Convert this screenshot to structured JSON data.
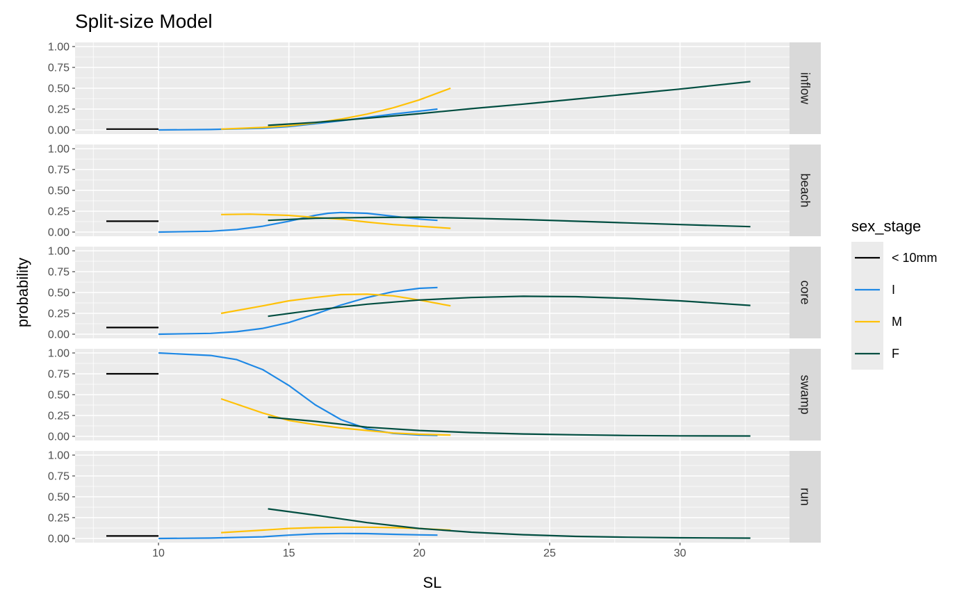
{
  "chart_data": {
    "type": "line",
    "title": "Split-size Model",
    "xlabel": "SL",
    "ylabel": "probability",
    "xlim": [
      6.8,
      34.2
    ],
    "ylim": [
      -0.05,
      1.05
    ],
    "x_ticks": [
      10,
      15,
      20,
      25,
      30
    ],
    "x_tick_labels": [
      "10",
      "15",
      "20",
      "25",
      "30"
    ],
    "y_ticks": [
      0,
      0.25,
      0.5,
      0.75,
      1
    ],
    "y_tick_labels": [
      "0.00",
      "0.25",
      "0.50",
      "0.75",
      "1.00"
    ],
    "grid": true,
    "facet_by": "row",
    "legend": {
      "title": "sex_stage",
      "position": "right",
      "entries": [
        {
          "label": "< 10mm",
          "color": "#000000"
        },
        {
          "label": "I",
          "color": "#1E88E5"
        },
        {
          "label": "M",
          "color": "#FFC107"
        },
        {
          "label": "F",
          "color": "#004D40"
        }
      ]
    },
    "panels": [
      {
        "label": "inflow",
        "series": [
          {
            "name": "< 10mm",
            "color": "#000000",
            "points": [
              [
                8,
                0.01
              ],
              [
                10,
                0.01
              ]
            ]
          },
          {
            "name": "I",
            "color": "#1E88E5",
            "points": [
              [
                10,
                0.0
              ],
              [
                12,
                0.005
              ],
              [
                14,
                0.02
              ],
              [
                15,
                0.04
              ],
              [
                16,
                0.075
              ],
              [
                17,
                0.11
              ],
              [
                18,
                0.15
              ],
              [
                19,
                0.19
              ],
              [
                20,
                0.225
              ],
              [
                20.7,
                0.25
              ]
            ]
          },
          {
            "name": "M",
            "color": "#FFC107",
            "points": [
              [
                12.4,
                0.01
              ],
              [
                14,
                0.03
              ],
              [
                15,
                0.05
              ],
              [
                16,
                0.085
              ],
              [
                17,
                0.13
              ],
              [
                18,
                0.19
              ],
              [
                19,
                0.265
              ],
              [
                20,
                0.36
              ],
              [
                21.2,
                0.5
              ]
            ]
          },
          {
            "name": "F",
            "color": "#004D40",
            "points": [
              [
                14.2,
                0.055
              ],
              [
                16,
                0.09
              ],
              [
                18,
                0.14
              ],
              [
                20,
                0.195
              ],
              [
                22,
                0.255
              ],
              [
                24,
                0.31
              ],
              [
                26,
                0.37
              ],
              [
                28,
                0.43
              ],
              [
                30,
                0.49
              ],
              [
                32.7,
                0.58
              ]
            ]
          }
        ]
      },
      {
        "label": "beach",
        "series": [
          {
            "name": "< 10mm",
            "color": "#000000",
            "points": [
              [
                8,
                0.13
              ],
              [
                10,
                0.13
              ]
            ]
          },
          {
            "name": "I",
            "color": "#1E88E5",
            "points": [
              [
                10,
                0.0
              ],
              [
                12,
                0.01
              ],
              [
                13,
                0.03
              ],
              [
                14,
                0.07
              ],
              [
                15,
                0.13
              ],
              [
                16,
                0.2
              ],
              [
                16.5,
                0.225
              ],
              [
                17,
                0.235
              ],
              [
                18,
                0.225
              ],
              [
                19,
                0.19
              ],
              [
                20,
                0.155
              ],
              [
                20.7,
                0.14
              ]
            ]
          },
          {
            "name": "M",
            "color": "#FFC107",
            "points": [
              [
                12.4,
                0.21
              ],
              [
                13.5,
                0.215
              ],
              [
                15,
                0.2
              ],
              [
                16,
                0.175
              ],
              [
                17,
                0.155
              ],
              [
                18,
                0.12
              ],
              [
                19,
                0.09
              ],
              [
                20,
                0.07
              ],
              [
                21.2,
                0.045
              ]
            ]
          },
          {
            "name": "F",
            "color": "#004D40",
            "points": [
              [
                14.2,
                0.14
              ],
              [
                16,
                0.165
              ],
              [
                18,
                0.175
              ],
              [
                20,
                0.178
              ],
              [
                22,
                0.165
              ],
              [
                24,
                0.15
              ],
              [
                26,
                0.13
              ],
              [
                28,
                0.11
              ],
              [
                30,
                0.09
              ],
              [
                32.7,
                0.065
              ]
            ]
          }
        ]
      },
      {
        "label": "core",
        "series": [
          {
            "name": "< 10mm",
            "color": "#000000",
            "points": [
              [
                8,
                0.08
              ],
              [
                10,
                0.08
              ]
            ]
          },
          {
            "name": "I",
            "color": "#1E88E5",
            "points": [
              [
                10,
                0.0
              ],
              [
                12,
                0.01
              ],
              [
                13,
                0.03
              ],
              [
                14,
                0.07
              ],
              [
                15,
                0.14
              ],
              [
                16,
                0.24
              ],
              [
                17,
                0.35
              ],
              [
                18,
                0.44
              ],
              [
                19,
                0.51
              ],
              [
                20,
                0.55
              ],
              [
                20.7,
                0.56
              ]
            ]
          },
          {
            "name": "M",
            "color": "#FFC107",
            "points": [
              [
                12.4,
                0.25
              ],
              [
                14,
                0.34
              ],
              [
                15,
                0.4
              ],
              [
                16,
                0.44
              ],
              [
                17,
                0.475
              ],
              [
                18,
                0.48
              ],
              [
                19,
                0.46
              ],
              [
                20,
                0.41
              ],
              [
                21.2,
                0.34
              ]
            ]
          },
          {
            "name": "F",
            "color": "#004D40",
            "points": [
              [
                14.2,
                0.215
              ],
              [
                16,
                0.29
              ],
              [
                18,
                0.36
              ],
              [
                20,
                0.41
              ],
              [
                22,
                0.44
              ],
              [
                24,
                0.455
              ],
              [
                26,
                0.45
              ],
              [
                28,
                0.43
              ],
              [
                30,
                0.4
              ],
              [
                32.7,
                0.345
              ]
            ]
          }
        ]
      },
      {
        "label": "swamp",
        "series": [
          {
            "name": "< 10mm",
            "color": "#000000",
            "points": [
              [
                8,
                0.75
              ],
              [
                10,
                0.75
              ]
            ]
          },
          {
            "name": "I",
            "color": "#1E88E5",
            "points": [
              [
                10,
                1.0
              ],
              [
                12,
                0.97
              ],
              [
                13,
                0.92
              ],
              [
                14,
                0.8
              ],
              [
                15,
                0.61
              ],
              [
                16,
                0.38
              ],
              [
                17,
                0.2
              ],
              [
                18,
                0.09
              ],
              [
                19,
                0.035
              ],
              [
                20,
                0.015
              ],
              [
                20.7,
                0.01
              ]
            ]
          },
          {
            "name": "M",
            "color": "#FFC107",
            "points": [
              [
                12.4,
                0.45
              ],
              [
                14,
                0.28
              ],
              [
                15,
                0.19
              ],
              [
                16,
                0.14
              ],
              [
                17,
                0.1
              ],
              [
                18,
                0.07
              ],
              [
                19,
                0.04
              ],
              [
                20,
                0.025
              ],
              [
                21.2,
                0.015
              ]
            ]
          },
          {
            "name": "F",
            "color": "#004D40",
            "points": [
              [
                14.2,
                0.23
              ],
              [
                16,
                0.18
              ],
              [
                18,
                0.11
              ],
              [
                20,
                0.07
              ],
              [
                22,
                0.045
              ],
              [
                24,
                0.028
              ],
              [
                26,
                0.018
              ],
              [
                28,
                0.01
              ],
              [
                30,
                0.006
              ],
              [
                32.7,
                0.004
              ]
            ]
          }
        ]
      },
      {
        "label": "run",
        "series": [
          {
            "name": "< 10mm",
            "color": "#000000",
            "points": [
              [
                8,
                0.03
              ],
              [
                10,
                0.03
              ]
            ]
          },
          {
            "name": "I",
            "color": "#1E88E5",
            "points": [
              [
                10,
                0.0
              ],
              [
                12,
                0.005
              ],
              [
                14,
                0.02
              ],
              [
                15,
                0.04
              ],
              [
                16,
                0.055
              ],
              [
                17,
                0.06
              ],
              [
                18,
                0.058
              ],
              [
                19,
                0.05
              ],
              [
                20,
                0.043
              ],
              [
                20.7,
                0.04
              ]
            ]
          },
          {
            "name": "M",
            "color": "#FFC107",
            "points": [
              [
                12.4,
                0.07
              ],
              [
                14,
                0.1
              ],
              [
                15,
                0.12
              ],
              [
                16,
                0.13
              ],
              [
                17,
                0.135
              ],
              [
                18,
                0.135
              ],
              [
                19,
                0.13
              ],
              [
                20,
                0.12
              ],
              [
                21.2,
                0.1
              ]
            ]
          },
          {
            "name": "F",
            "color": "#004D40",
            "points": [
              [
                14.2,
                0.355
              ],
              [
                16,
                0.28
              ],
              [
                18,
                0.19
              ],
              [
                20,
                0.12
              ],
              [
                22,
                0.075
              ],
              [
                24,
                0.045
              ],
              [
                26,
                0.025
              ],
              [
                28,
                0.015
              ],
              [
                30,
                0.008
              ],
              [
                32.7,
                0.004
              ]
            ]
          }
        ]
      }
    ]
  }
}
